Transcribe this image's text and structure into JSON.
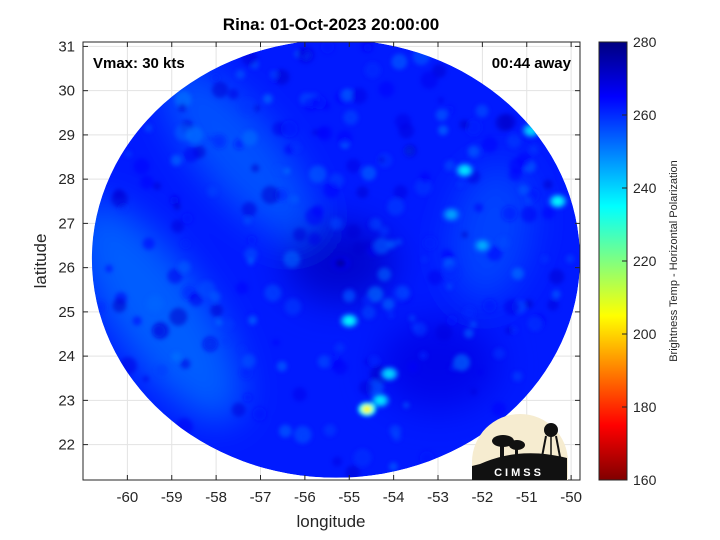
{
  "chart_data": {
    "type": "heatmap",
    "title": "Rina: 01-Oct-2023 20:00:00",
    "xlabel": "longitude",
    "ylabel": "latitude",
    "xlim": [
      -61,
      -49.8
    ],
    "ylim": [
      21.2,
      31.1
    ],
    "xticks": [
      -60,
      -59,
      -58,
      -57,
      -56,
      -55,
      -54,
      -53,
      -52,
      -51,
      -50
    ],
    "yticks": [
      22,
      23,
      24,
      25,
      26,
      27,
      28,
      29,
      30,
      31
    ],
    "grid": true,
    "annotations": {
      "vmax": "Vmax: 30 kts",
      "offset": "00:44 away"
    },
    "colorbar": {
      "label": "Brightness Temp - Horizontal Polarization",
      "range": [
        160,
        280
      ],
      "ticks": [
        160,
        180,
        200,
        220,
        240,
        260,
        280
      ],
      "colormap": "jet"
    },
    "swath": {
      "center_lon": -55.3,
      "center_lat": 26.2,
      "radius_lon": 5.5,
      "radius_lat": 4.95
    },
    "background_value": 262,
    "features": [
      {
        "lon": -54.6,
        "lat": 22.8,
        "value": 205
      },
      {
        "lon": -54.3,
        "lat": 23.0,
        "value": 238
      },
      {
        "lon": -54.1,
        "lat": 23.6,
        "value": 240
      },
      {
        "lon": -55.0,
        "lat": 24.8,
        "value": 236
      },
      {
        "lon": -52.4,
        "lat": 28.2,
        "value": 238
      },
      {
        "lon": -50.9,
        "lat": 29.1,
        "value": 240
      },
      {
        "lon": -50.3,
        "lat": 27.5,
        "value": 236
      },
      {
        "lon": -52.0,
        "lat": 26.5,
        "value": 245
      },
      {
        "lon": -52.7,
        "lat": 27.2,
        "value": 246
      },
      {
        "lon": -55.2,
        "lat": 26.1,
        "value": 275
      }
    ]
  },
  "logo": {
    "text": "CIMSS"
  }
}
